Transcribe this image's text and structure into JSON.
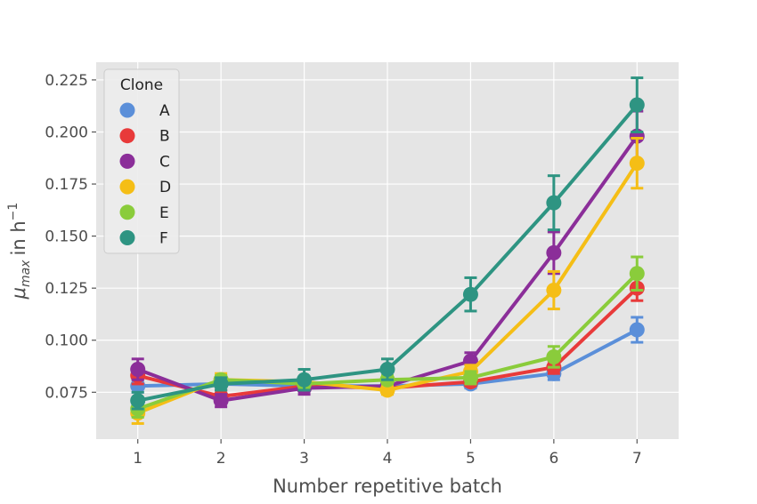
{
  "chart_data": {
    "type": "line",
    "xlabel": "Number repetitive batch",
    "ylabel": "μmax in h⁻¹",
    "ylabel_main": "μ",
    "ylabel_sub": "max",
    "ylabel_unit": "in h",
    "ylabel_sup": "−1",
    "xlim": [
      0.5,
      7.5
    ],
    "ylim": [
      0.0525,
      0.2335
    ],
    "x": [
      1,
      2,
      3,
      4,
      5,
      6,
      7
    ],
    "xticks": [
      "1",
      "2",
      "3",
      "4",
      "5",
      "6",
      "7"
    ],
    "yticks": [
      "0.075",
      "0.100",
      "0.125",
      "0.150",
      "0.175",
      "0.200",
      "0.225"
    ],
    "ytick_values": [
      0.075,
      0.1,
      0.125,
      0.15,
      0.175,
      0.2,
      0.225
    ],
    "grid": true,
    "background": "#e5e5e5",
    "legend": {
      "title": "Clone",
      "placement": "top-left"
    },
    "series": [
      {
        "name": "A",
        "color": "#5b8fd9",
        "values": [
          0.078,
          0.079,
          0.078,
          0.078,
          0.079,
          0.084,
          0.105
        ],
        "errors": [
          0.003,
          0.003,
          0.002,
          0.002,
          0.002,
          0.003,
          0.006
        ]
      },
      {
        "name": "B",
        "color": "#e83a3a",
        "values": [
          0.083,
          0.073,
          0.078,
          0.077,
          0.08,
          0.087,
          0.125
        ],
        "errors": [
          0.004,
          0.003,
          0.002,
          0.002,
          0.002,
          0.003,
          0.006
        ]
      },
      {
        "name": "C",
        "color": "#8b2e99",
        "values": [
          0.086,
          0.071,
          0.077,
          0.078,
          0.09,
          0.142,
          0.198
        ],
        "errors": [
          0.005,
          0.003,
          0.003,
          0.002,
          0.004,
          0.01,
          0.012
        ]
      },
      {
        "name": "D",
        "color": "#f5be16",
        "values": [
          0.065,
          0.081,
          0.08,
          0.076,
          0.085,
          0.124,
          0.185
        ],
        "errors": [
          0.005,
          0.003,
          0.002,
          0.002,
          0.003,
          0.009,
          0.012
        ]
      },
      {
        "name": "E",
        "color": "#8acc3b",
        "values": [
          0.067,
          0.081,
          0.079,
          0.081,
          0.082,
          0.092,
          0.132
        ],
        "errors": [
          0.004,
          0.002,
          0.002,
          0.002,
          0.003,
          0.005,
          0.008
        ]
      },
      {
        "name": "F",
        "color": "#2e9482",
        "values": [
          0.071,
          0.079,
          0.081,
          0.086,
          0.122,
          0.166,
          0.213
        ],
        "errors": [
          0.004,
          0.003,
          0.005,
          0.005,
          0.008,
          0.013,
          0.013
        ]
      }
    ]
  }
}
